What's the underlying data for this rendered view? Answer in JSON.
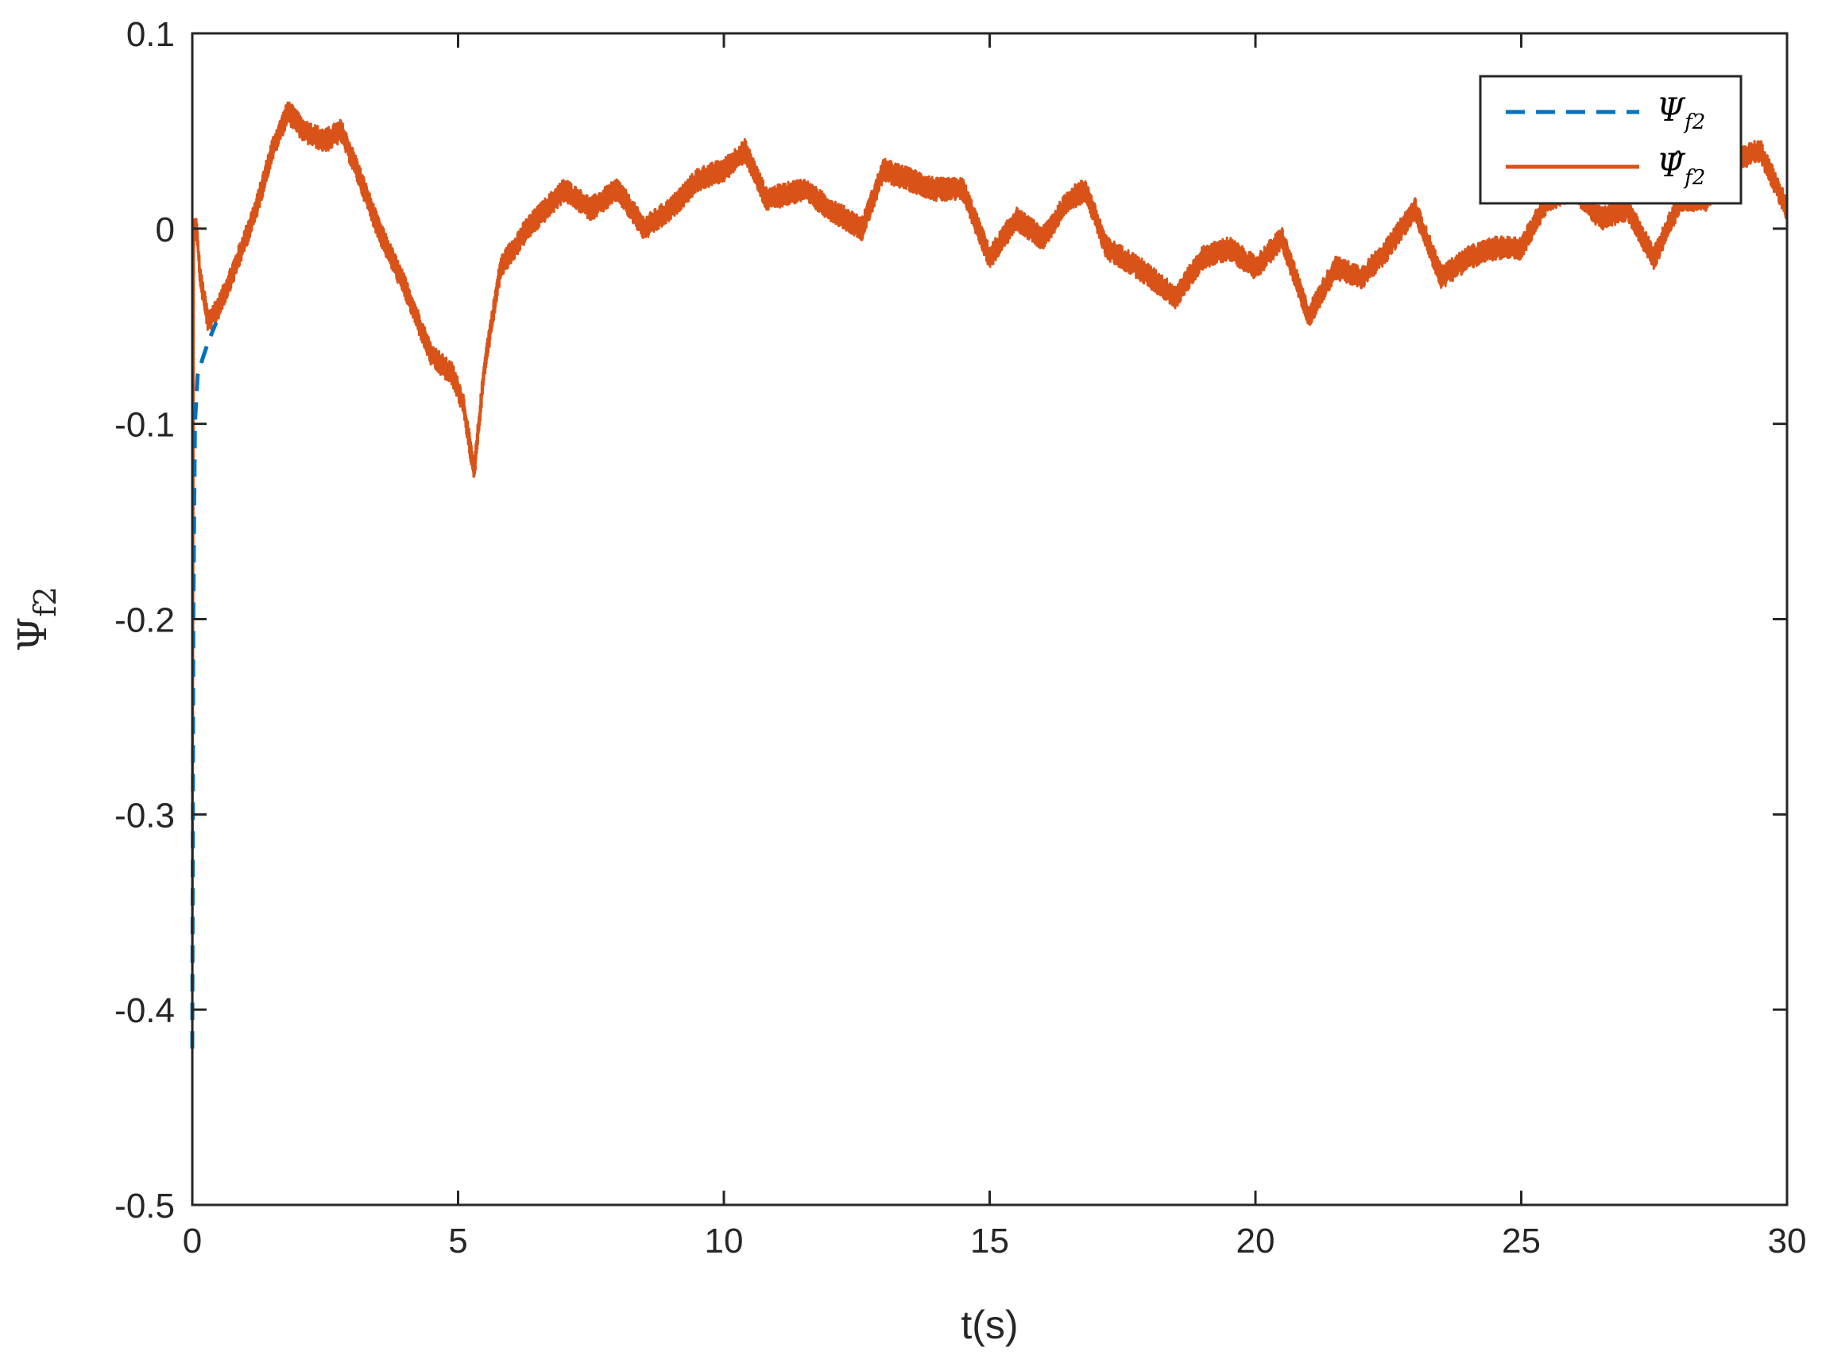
{
  "chart_data": {
    "type": "line",
    "xlabel": "t(s)",
    "ylabel_main": "Ψ",
    "ylabel_sub": "f2",
    "xlim": [
      0,
      30
    ],
    "ylim": [
      -0.5,
      0.1
    ],
    "xticks": [
      0,
      5,
      10,
      15,
      20,
      25,
      30
    ],
    "yticks": [
      0.1,
      0,
      -0.1,
      -0.2,
      -0.3,
      -0.4,
      -0.5
    ],
    "xtick_labels": [
      "0",
      "5",
      "10",
      "15",
      "20",
      "25",
      "30"
    ],
    "ytick_labels": [
      "0.1",
      "0",
      "-0.1",
      "-0.2",
      "-0.3",
      "-0.4",
      "-0.5"
    ],
    "grid": false,
    "legend_position": "top-right",
    "series": [
      {
        "name": "Ψ_f2",
        "legend_main": "Ψ",
        "legend_sub": "f2",
        "color": "#0072BD",
        "style": "dashed",
        "points": [
          [
            0,
            -0.42
          ],
          [
            0.02,
            -0.2
          ],
          [
            0.05,
            -0.1
          ],
          [
            0.1,
            -0.075
          ],
          [
            0.2,
            -0.066
          ],
          [
            0.3,
            -0.058
          ],
          [
            0.45,
            -0.048
          ]
        ]
      },
      {
        "name": "Ψ̂_f2",
        "legend_main": "Ψ̂",
        "legend_sub": "f2",
        "color": "#D95319",
        "style": "solid",
        "noise_amplitude": 0.006,
        "points": [
          [
            0,
            -0.42
          ],
          [
            0.03,
            0.0
          ],
          [
            0.08,
            0.0
          ],
          [
            0.15,
            -0.025
          ],
          [
            0.3,
            -0.048
          ],
          [
            0.5,
            -0.04
          ],
          [
            0.8,
            -0.02
          ],
          [
            1.2,
            0.01
          ],
          [
            1.5,
            0.04
          ],
          [
            1.8,
            0.06
          ],
          [
            2.1,
            0.05
          ],
          [
            2.5,
            0.045
          ],
          [
            2.8,
            0.05
          ],
          [
            3.1,
            0.03
          ],
          [
            3.5,
            0.0
          ],
          [
            4.0,
            -0.03
          ],
          [
            4.5,
            -0.065
          ],
          [
            4.9,
            -0.075
          ],
          [
            5.1,
            -0.09
          ],
          [
            5.3,
            -0.125
          ],
          [
            5.5,
            -0.07
          ],
          [
            5.8,
            -0.02
          ],
          [
            6.3,
            0.0
          ],
          [
            7.0,
            0.02
          ],
          [
            7.5,
            0.01
          ],
          [
            8.0,
            0.02
          ],
          [
            8.5,
            0.0
          ],
          [
            9.0,
            0.01
          ],
          [
            9.5,
            0.025
          ],
          [
            10.0,
            0.03
          ],
          [
            10.4,
            0.04
          ],
          [
            10.8,
            0.015
          ],
          [
            11.5,
            0.02
          ],
          [
            12.0,
            0.01
          ],
          [
            12.6,
            0.0
          ],
          [
            13.0,
            0.03
          ],
          [
            13.5,
            0.025
          ],
          [
            14.0,
            0.02
          ],
          [
            14.5,
            0.02
          ],
          [
            15.0,
            -0.015
          ],
          [
            15.5,
            0.005
          ],
          [
            16.0,
            -0.005
          ],
          [
            16.5,
            0.015
          ],
          [
            16.8,
            0.02
          ],
          [
            17.2,
            -0.01
          ],
          [
            17.8,
            -0.02
          ],
          [
            18.5,
            -0.035
          ],
          [
            19.0,
            -0.015
          ],
          [
            19.5,
            -0.01
          ],
          [
            20.0,
            -0.02
          ],
          [
            20.5,
            -0.005
          ],
          [
            21.0,
            -0.045
          ],
          [
            21.5,
            -0.02
          ],
          [
            22.0,
            -0.025
          ],
          [
            22.5,
            -0.01
          ],
          [
            23.0,
            0.01
          ],
          [
            23.5,
            -0.025
          ],
          [
            24.0,
            -0.015
          ],
          [
            24.5,
            -0.01
          ],
          [
            25.0,
            -0.01
          ],
          [
            25.5,
            0.015
          ],
          [
            26.0,
            0.02
          ],
          [
            26.5,
            0.005
          ],
          [
            27.0,
            0.01
          ],
          [
            27.5,
            -0.015
          ],
          [
            28.0,
            0.015
          ],
          [
            28.5,
            0.015
          ],
          [
            29.0,
            0.035
          ],
          [
            29.5,
            0.04
          ],
          [
            30.0,
            0.01
          ]
        ]
      }
    ]
  }
}
